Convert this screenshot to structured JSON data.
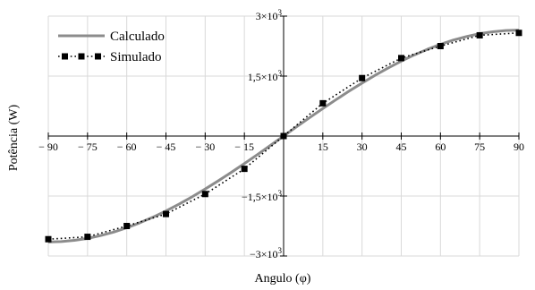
{
  "chart_data": {
    "type": "line",
    "xlabel": "Angulo (φ)",
    "ylabel": "Potência (W)",
    "xlim": [
      -90,
      90
    ],
    "ylim": [
      -3000,
      3000
    ],
    "x_ticks": [
      -90,
      -75,
      -60,
      -45,
      -30,
      -15,
      0,
      15,
      30,
      45,
      60,
      75,
      90
    ],
    "x_tick_labels": [
      "− 90",
      "− 75",
      "− 60",
      "− 45",
      "− 30",
      "− 15",
      "",
      "15",
      "30",
      "45",
      "60",
      "75",
      "90"
    ],
    "y_ticks": [
      {
        "value": 3000,
        "mantissa": "3",
        "exponent": "3"
      },
      {
        "value": 1500,
        "mantissa": "1,5",
        "exponent": "3"
      },
      {
        "value": -1500,
        "mantissa": "−1,5",
        "exponent": "3"
      },
      {
        "value": -3000,
        "mantissa": "−3",
        "exponent": "3"
      }
    ],
    "grid": true,
    "legend_position": "top-left",
    "series": [
      {
        "name": "Calculado",
        "style": "solid",
        "color": "#8c8c8c",
        "x": [
          -90,
          -85,
          -80,
          -75,
          -70,
          -65,
          -60,
          -55,
          -50,
          -45,
          -40,
          -35,
          -30,
          -25,
          -20,
          -15,
          -10,
          -5,
          0,
          5,
          10,
          15,
          20,
          25,
          30,
          35,
          40,
          45,
          50,
          55,
          60,
          65,
          70,
          75,
          80,
          85,
          90
        ],
        "y": [
          -2650,
          -2640,
          -2608,
          -2560,
          -2490,
          -2402,
          -2295,
          -2170,
          -2030,
          -1874,
          -1703,
          -1520,
          -1325,
          -1121,
          -908,
          -689,
          -463,
          -233,
          0,
          233,
          463,
          689,
          908,
          1121,
          1325,
          1520,
          1703,
          1874,
          2030,
          2170,
          2295,
          2402,
          2490,
          2560,
          2608,
          2640,
          2650
        ]
      },
      {
        "name": "Simulado",
        "style": "dotted",
        "marker": "square",
        "color": "#000000",
        "x": [
          -90,
          -75,
          -60,
          -45,
          -30,
          -15,
          0,
          15,
          30,
          45,
          60,
          75,
          90
        ],
        "y": [
          -2580,
          -2520,
          -2250,
          -1950,
          -1450,
          -820,
          0,
          820,
          1450,
          1950,
          2250,
          2520,
          2580
        ]
      }
    ]
  }
}
